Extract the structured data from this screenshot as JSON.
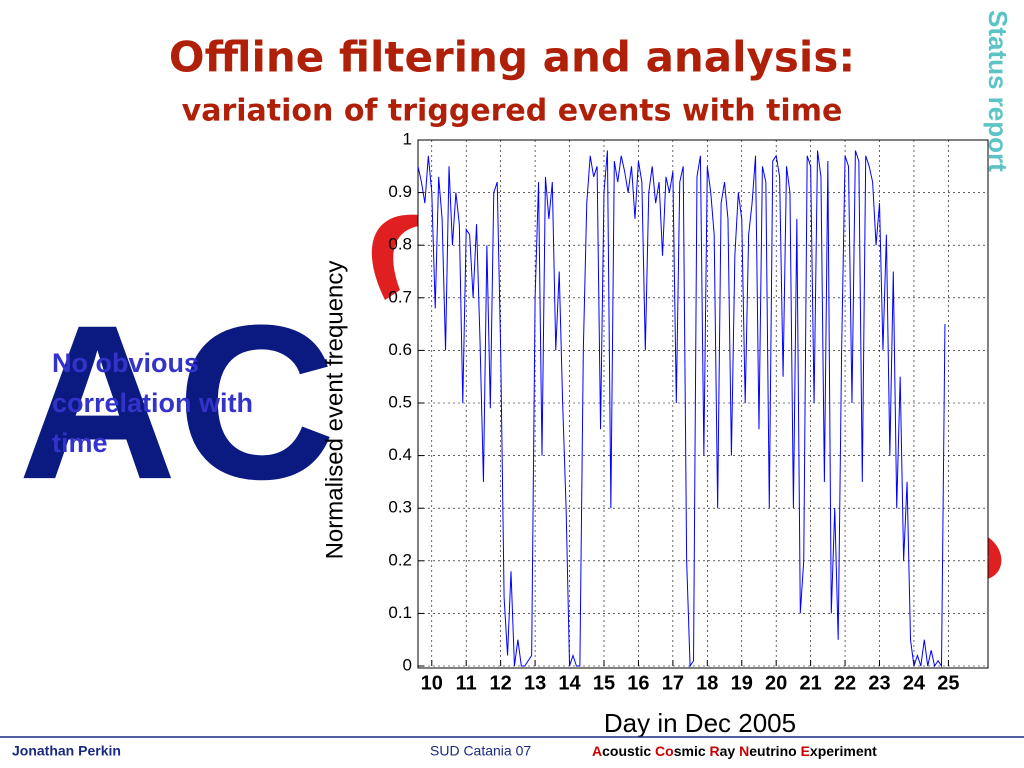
{
  "title": "Offline filtering and analysis:",
  "subtitle": "variation of triggered events with time",
  "side_label": "Status report",
  "logo": "AC",
  "note": [
    "No obvious",
    "correlation with",
    "time"
  ],
  "footer": {
    "author": "Jonathan Perkin",
    "venue": "SUD Catania 07",
    "experiment": [
      "A",
      "coustic ",
      "Co",
      "smic ",
      "R",
      "ay ",
      "N",
      "eutrino ",
      "E",
      "xperiment"
    ]
  },
  "chart_data": {
    "type": "line",
    "xlabel": "Day in Dec 2005",
    "ylabel": "Normalised event frequency",
    "xlim": [
      9.6,
      26.15
    ],
    "ylim": [
      0,
      1
    ],
    "xticks": [
      10,
      11,
      12,
      13,
      14,
      15,
      16,
      17,
      18,
      19,
      20,
      21,
      22,
      23,
      24,
      25
    ],
    "yticks": [
      0,
      0.1,
      0.2,
      0.3,
      0.4,
      0.5,
      0.6,
      0.7,
      0.8,
      0.9,
      1
    ],
    "grid": true,
    "x": [
      9.6,
      9.7,
      9.8,
      9.9,
      10.0,
      10.1,
      10.2,
      10.3,
      10.4,
      10.5,
      10.6,
      10.7,
      10.8,
      10.9,
      11.0,
      11.1,
      11.2,
      11.3,
      11.4,
      11.5,
      11.6,
      11.7,
      11.8,
      11.9,
      12.0,
      12.1,
      12.2,
      12.3,
      12.4,
      12.5,
      12.6,
      12.7,
      12.8,
      12.9,
      13.0,
      13.1,
      13.2,
      13.3,
      13.4,
      13.5,
      13.6,
      13.7,
      13.8,
      13.9,
      14.0,
      14.1,
      14.2,
      14.3,
      14.4,
      14.5,
      14.6,
      14.7,
      14.8,
      14.9,
      15.0,
      15.1,
      15.2,
      15.3,
      15.4,
      15.5,
      15.6,
      15.7,
      15.8,
      15.9,
      16.0,
      16.1,
      16.2,
      16.3,
      16.4,
      16.5,
      16.6,
      16.7,
      16.8,
      16.9,
      17.0,
      17.1,
      17.2,
      17.3,
      17.4,
      17.5,
      17.6,
      17.7,
      17.8,
      17.9,
      18.0,
      18.1,
      18.2,
      18.3,
      18.4,
      18.5,
      18.6,
      18.7,
      18.8,
      18.9,
      19.0,
      19.1,
      19.2,
      19.3,
      19.4,
      19.5,
      19.6,
      19.7,
      19.8,
      19.9,
      20.0,
      20.1,
      20.2,
      20.3,
      20.4,
      20.5,
      20.6,
      20.7,
      20.8,
      20.9,
      21.0,
      21.1,
      21.2,
      21.3,
      21.4,
      21.5,
      21.6,
      21.7,
      21.8,
      21.9,
      22.0,
      22.1,
      22.2,
      22.3,
      22.4,
      22.5,
      22.6,
      22.7,
      22.8,
      22.9,
      23.0,
      23.1,
      23.2,
      23.3,
      23.4,
      23.5,
      23.6,
      23.7,
      23.8,
      23.9,
      24.0,
      24.1,
      24.2,
      24.3,
      24.4,
      24.5,
      24.6,
      24.7,
      24.8,
      24.9
    ],
    "series": [
      {
        "name": "Normalised event frequency",
        "color": "#0000ff",
        "values": [
          0.95,
          0.92,
          0.88,
          0.97,
          0.9,
          0.68,
          0.93,
          0.85,
          0.6,
          0.95,
          0.8,
          0.9,
          0.84,
          0.5,
          0.83,
          0.82,
          0.7,
          0.84,
          0.62,
          0.35,
          0.8,
          0.49,
          0.9,
          0.92,
          0.6,
          0.13,
          0.02,
          0.18,
          0,
          0.05,
          0,
          0,
          0.01,
          0.02,
          0.7,
          0.92,
          0.4,
          0.93,
          0.85,
          0.92,
          0.6,
          0.75,
          0.5,
          0.3,
          0,
          0.02,
          0,
          0,
          0.6,
          0.88,
          0.97,
          0.93,
          0.95,
          0.45,
          0.9,
          0.98,
          0.3,
          0.96,
          0.92,
          0.97,
          0.94,
          0.9,
          0.95,
          0.85,
          0.96,
          0.92,
          0.6,
          0.9,
          0.95,
          0.88,
          0.92,
          0.78,
          0.93,
          0.9,
          0.94,
          0.5,
          0.92,
          0.95,
          0.2,
          0,
          0.01,
          0.93,
          0.97,
          0.4,
          0.95,
          0.9,
          0.82,
          0.3,
          0.88,
          0.92,
          0.85,
          0.4,
          0.78,
          0.9,
          0.85,
          0.5,
          0.82,
          0.88,
          0.97,
          0.45,
          0.95,
          0.92,
          0.3,
          0.96,
          0.97,
          0.93,
          0.55,
          0.95,
          0.9,
          0.3,
          0.85,
          0.1,
          0.2,
          0.97,
          0.95,
          0.5,
          0.98,
          0.93,
          0.35,
          0.96,
          0.1,
          0.3,
          0.05,
          0.6,
          0.97,
          0.95,
          0.5,
          0.98,
          0.96,
          0.35,
          0.97,
          0.95,
          0.92,
          0.8,
          0.88,
          0.6,
          0.82,
          0.4,
          0.75,
          0.3,
          0.55,
          0.2,
          0.35,
          0.05,
          0,
          0.02,
          0,
          0.05,
          0,
          0.03,
          0,
          0.01,
          0,
          0.65
        ]
      }
    ]
  }
}
